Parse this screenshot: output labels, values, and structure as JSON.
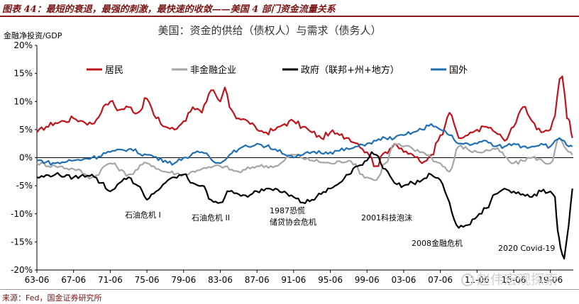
{
  "figure": {
    "title": "图表 44：最短的衰退，最强的刺激，最快速的收敛——美国 4 部门资金流量关系",
    "source": "来源：Fed，国金证券研究所",
    "watermark": "赵伟宏观探索"
  },
  "chart_data": {
    "type": "line",
    "title": "美国：资金的供给（债权人）与需求（债务人）",
    "ylabel": "金融净投资/GDP",
    "xlabel": "",
    "ylim": [
      -20,
      20
    ],
    "yticks": [
      20,
      15,
      10,
      5,
      0,
      -5,
      -10,
      -15,
      -20
    ],
    "ytick_labels": [
      "20%",
      "15%",
      "10%",
      "5%",
      "0%",
      "-5%",
      "-10%",
      "-15%",
      "-20%"
    ],
    "xlim": [
      1963.5,
      2022.0
    ],
    "xticks": [
      1963.5,
      1967.5,
      1971.5,
      1975.5,
      1979.5,
      1983.5,
      1987.5,
      1991.5,
      1995.5,
      1999.5,
      2003.5,
      2007.5,
      2011.5,
      2015.5,
      2019.5
    ],
    "xtick_labels": [
      "63-06",
      "67-06",
      "71-06",
      "75-06",
      "79-06",
      "83-06",
      "87-06",
      "91-06",
      "95-06",
      "99-06",
      "03-06",
      "07-06",
      "11-06",
      "15-06",
      "19-06"
    ],
    "series": [
      {
        "name": "居民",
        "color": "#c0141c",
        "x": [
          1963.5,
          1964.5,
          1965.5,
          1966.5,
          1967.5,
          1968.5,
          1969.5,
          1970.5,
          1971.0,
          1971.5,
          1972.5,
          1973.5,
          1974.5,
          1975.5,
          1976.5,
          1977.5,
          1978.5,
          1979.5,
          1980.5,
          1981.5,
          1982.0,
          1982.5,
          1983.5,
          1984.0,
          1984.5,
          1985.5,
          1986.5,
          1987.5,
          1988.5,
          1989.5,
          1990.5,
          1991.5,
          1992.5,
          1993.5,
          1994.5,
          1995.5,
          1996.5,
          1997.5,
          1998.5,
          1999.5,
          2000.5,
          2001.5,
          2002.5,
          2003.5,
          2004.5,
          2005.5,
          2006.5,
          2007.5,
          2008.5,
          2009.0,
          2009.5,
          2010.5,
          2011.5,
          2012.5,
          2013.5,
          2014.5,
          2015.5,
          2016.5,
          2017.5,
          2018.5,
          2019.5,
          2020.0,
          2020.5,
          2020.8,
          2021.0,
          2021.3,
          2021.6,
          2021.9
        ],
        "y": [
          4.5,
          5.5,
          6.2,
          6.5,
          7.0,
          6.5,
          6.0,
          8.0,
          9.5,
          10.0,
          8.5,
          9.0,
          8.0,
          10.5,
          7.0,
          5.5,
          5.0,
          6.5,
          9.0,
          8.0,
          10.0,
          12.0,
          10.0,
          12.5,
          9.0,
          7.0,
          6.5,
          5.0,
          4.5,
          5.0,
          6.0,
          6.5,
          5.5,
          4.5,
          3.5,
          4.5,
          4.0,
          3.5,
          2.5,
          1.0,
          -1.5,
          1.0,
          2.5,
          1.0,
          0.5,
          -1.0,
          0.5,
          4.0,
          8.0,
          6.0,
          3.5,
          4.0,
          5.0,
          5.5,
          4.5,
          3.0,
          5.5,
          9.0,
          6.5,
          4.5,
          5.0,
          7.5,
          14.0,
          14.5,
          12.0,
          7.0,
          6.5,
          3.5
        ]
      },
      {
        "name": "非金融企业",
        "color": "#a6a6a6",
        "x": [
          1963.5,
          1965.5,
          1967.5,
          1969.5,
          1971.5,
          1973.5,
          1975.5,
          1977.5,
          1979.5,
          1981.5,
          1983.5,
          1985.5,
          1987.5,
          1989.5,
          1991.5,
          1993.5,
          1995.5,
          1997.5,
          1999.5,
          2000.5,
          2001.5,
          2002.5,
          2003.5,
          2005.5,
          2007.5,
          2008.5,
          2009.5,
          2011.5,
          2013.5,
          2015.5,
          2017.5,
          2019.5,
          2020.5,
          2021.0,
          2021.5,
          2021.9
        ],
        "y": [
          -1.0,
          -1.5,
          -2.0,
          -3.5,
          -1.0,
          -3.0,
          -1.0,
          -2.5,
          -3.0,
          -2.0,
          -1.5,
          -2.5,
          -1.5,
          -1.5,
          0.5,
          -0.5,
          -1.0,
          -0.5,
          -3.5,
          -4.0,
          -1.0,
          2.5,
          2.0,
          1.0,
          -1.0,
          -2.5,
          2.0,
          1.0,
          1.5,
          -1.0,
          0.0,
          -1.0,
          3.5,
          2.0,
          1.0,
          0.5
        ]
      },
      {
        "name": "政府（联邦+州+地方）",
        "color": "#000000",
        "x": [
          1963.5,
          1965.5,
          1967.5,
          1969.5,
          1970.5,
          1971.5,
          1972.5,
          1973.5,
          1974.5,
          1975.5,
          1976.5,
          1977.5,
          1978.5,
          1979.5,
          1980.5,
          1981.5,
          1982.5,
          1983.5,
          1984.5,
          1985.5,
          1986.5,
          1987.5,
          1988.5,
          1989.5,
          1990.5,
          1991.5,
          1992.5,
          1993.5,
          1994.5,
          1995.5,
          1996.5,
          1997.5,
          1998.5,
          1999.5,
          2000.0,
          2000.5,
          2001.5,
          2002.5,
          2003.5,
          2004.5,
          2005.5,
          2006.5,
          2007.5,
          2008.0,
          2008.5,
          2009.0,
          2009.5,
          2010.5,
          2011.5,
          2012.5,
          2013.5,
          2014.5,
          2015.5,
          2016.5,
          2017.5,
          2018.5,
          2019.5,
          2020.0,
          2020.3,
          2020.6,
          2021.0,
          2021.5,
          2021.9
        ],
        "y": [
          -3.5,
          -3.0,
          -3.5,
          -3.0,
          -4.5,
          -6.0,
          -4.5,
          -3.5,
          -5.0,
          -7.5,
          -6.0,
          -4.5,
          -3.5,
          -3.0,
          -4.5,
          -5.0,
          -7.5,
          -8.0,
          -6.0,
          -6.5,
          -7.0,
          -6.0,
          -5.5,
          -5.5,
          -6.0,
          -7.0,
          -8.0,
          -7.5,
          -6.5,
          -5.5,
          -4.5,
          -3.0,
          -1.5,
          -0.5,
          1.0,
          0.5,
          -2.0,
          -4.5,
          -5.0,
          -4.5,
          -4.0,
          -3.0,
          -4.0,
          -6.0,
          -8.0,
          -11.0,
          -12.5,
          -12.0,
          -10.5,
          -9.0,
          -6.5,
          -5.5,
          -6.0,
          -6.5,
          -7.0,
          -6.0,
          -6.0,
          -7.0,
          -13.0,
          -16.0,
          -18.0,
          -12.0,
          -5.5
        ]
      },
      {
        "name": "国外",
        "color": "#1f6fb4",
        "x": [
          1963.5,
          1965.5,
          1967.5,
          1969.5,
          1971.5,
          1973.5,
          1975.5,
          1977.5,
          1978.5,
          1979.5,
          1981.5,
          1983.5,
          1984.5,
          1985.5,
          1986.5,
          1987.5,
          1988.5,
          1989.5,
          1991.5,
          1992.5,
          1993.5,
          1995.5,
          1997.5,
          1998.5,
          1999.5,
          2000.5,
          2001.5,
          2002.5,
          2003.5,
          2004.5,
          2005.5,
          2006.5,
          2007.5,
          2008.5,
          2009.5,
          2010.5,
          2011.5,
          2012.5,
          2013.5,
          2014.5,
          2015.5,
          2016.5,
          2017.5,
          2018.5,
          2019.5,
          2020.5,
          2021.0,
          2021.5,
          2021.9
        ],
        "y": [
          -0.5,
          -1.0,
          -0.5,
          0.0,
          1.0,
          1.5,
          0.5,
          -0.5,
          -1.0,
          0.0,
          1.0,
          -1.0,
          0.5,
          1.5,
          2.0,
          2.5,
          2.0,
          1.5,
          0.0,
          0.5,
          1.0,
          1.0,
          1.5,
          2.0,
          2.5,
          3.0,
          3.5,
          3.5,
          4.0,
          4.5,
          5.0,
          6.0,
          5.0,
          4.0,
          2.5,
          2.5,
          2.5,
          3.0,
          2.0,
          2.0,
          2.5,
          2.0,
          2.0,
          2.5,
          2.0,
          3.5,
          3.0,
          2.0,
          2.0
        ]
      }
    ],
    "annotations": [
      "石油危机 I",
      "石油危机 II",
      "1987恐慌",
      "储贷协会危机",
      "2001科技泡沫",
      "2008金融危机",
      "2020 Covid-19"
    ]
  }
}
